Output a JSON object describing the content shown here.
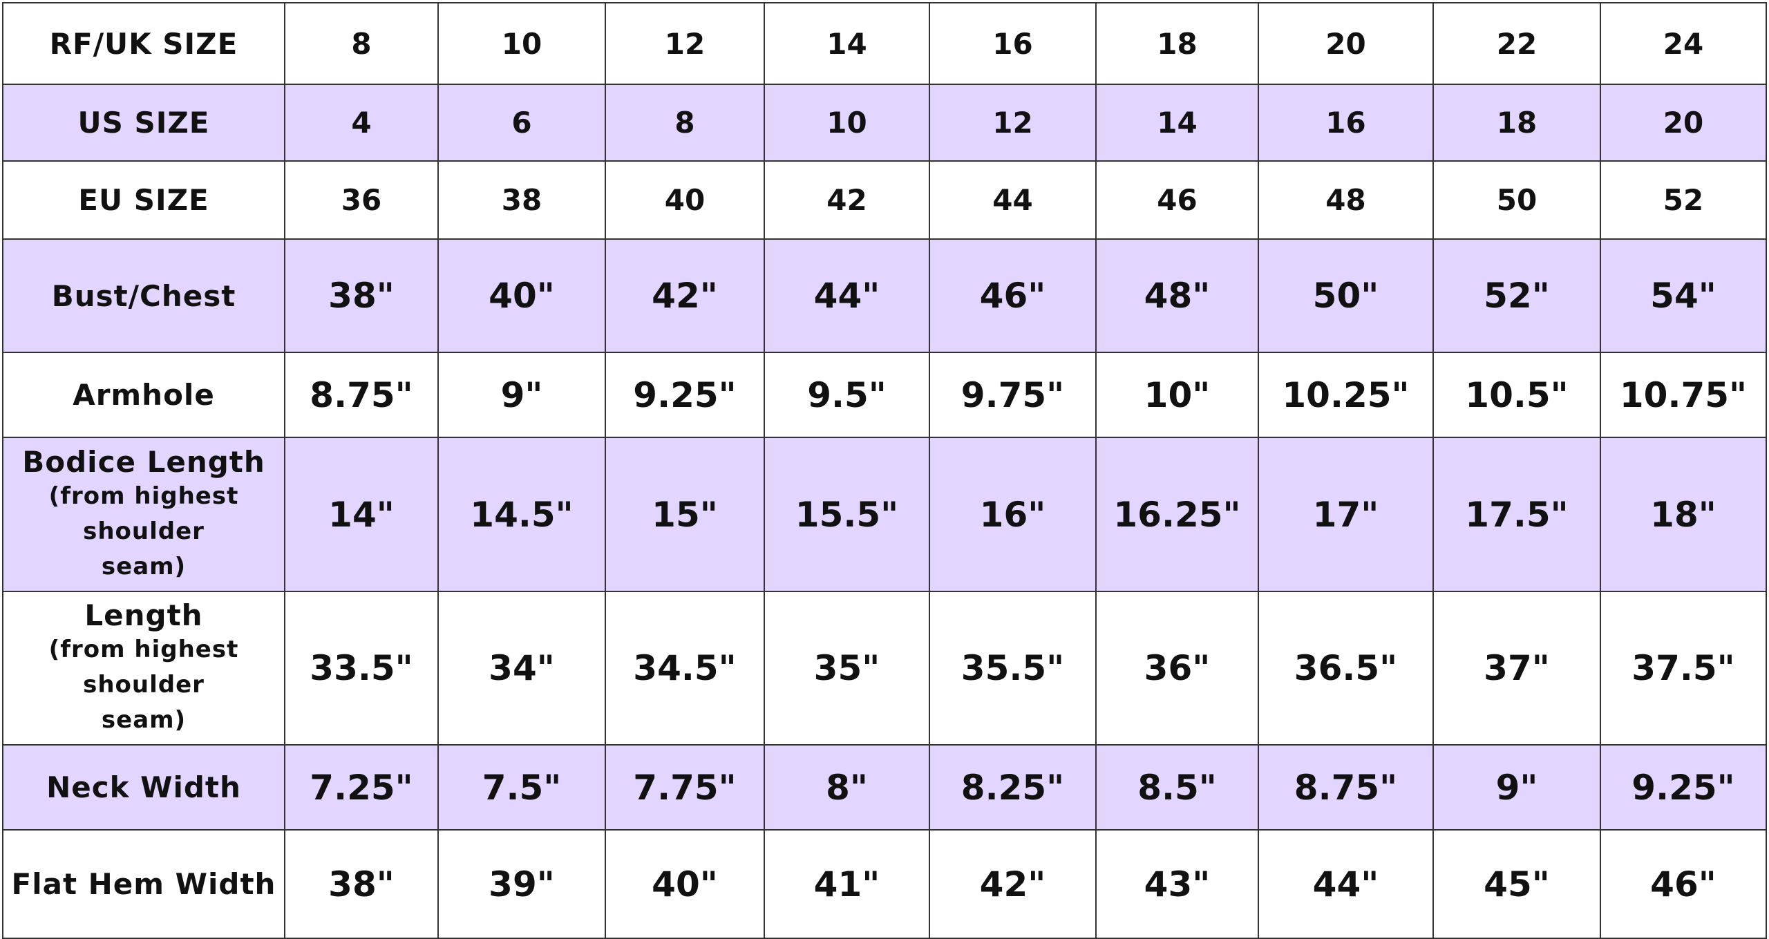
{
  "table": {
    "rows": [
      {
        "label": "RF/UK SIZE",
        "cells": [
          "8",
          "10",
          "12",
          "14",
          "16",
          "18",
          "20",
          "22",
          "24"
        ]
      },
      {
        "label": "US SIZE",
        "cells": [
          "4",
          "6",
          "8",
          "10",
          "12",
          "14",
          "16",
          "18",
          "20"
        ]
      },
      {
        "label": "EU SIZE",
        "cells": [
          "36",
          "38",
          "40",
          "42",
          "44",
          "46",
          "48",
          "50",
          "52"
        ]
      },
      {
        "label": "Bust/Chest",
        "cells": [
          "38\"",
          "40\"",
          "42\"",
          "44\"",
          "46\"",
          "48\"",
          "50\"",
          "52\"",
          "54\""
        ]
      },
      {
        "label": "Armhole",
        "cells": [
          "8.75\"",
          "9\"",
          "9.25\"",
          "9.5\"",
          "9.75\"",
          "10\"",
          "10.25\"",
          "10.5\"",
          "10.75\""
        ]
      },
      {
        "label": "Bodice Length",
        "note": "(from highest shoulder seam)",
        "cells": [
          "14\"",
          "14.5\"",
          "15\"",
          "15.5\"",
          "16\"",
          "16.25\"",
          "17\"",
          "17.5\"",
          "18\""
        ]
      },
      {
        "label": "Length",
        "note": "(from highest shoulder seam)",
        "cells": [
          "33.5\"",
          "34\"",
          "34.5\"",
          "35\"",
          "35.5\"",
          "36\"",
          "36.5\"",
          "37\"",
          "37.5\""
        ]
      },
      {
        "label": "Neck Width",
        "cells": [
          "7.25\"",
          "7.5\"",
          "7.75\"",
          "8\"",
          "8.25\"",
          "8.5\"",
          "8.75\"",
          "9\"",
          "9.25\""
        ]
      },
      {
        "label": "Flat Hem Width",
        "cells": [
          "38\"",
          "39\"",
          "40\"",
          "41\"",
          "42\"",
          "43\"",
          "44\"",
          "45\"",
          "46\""
        ]
      }
    ]
  }
}
